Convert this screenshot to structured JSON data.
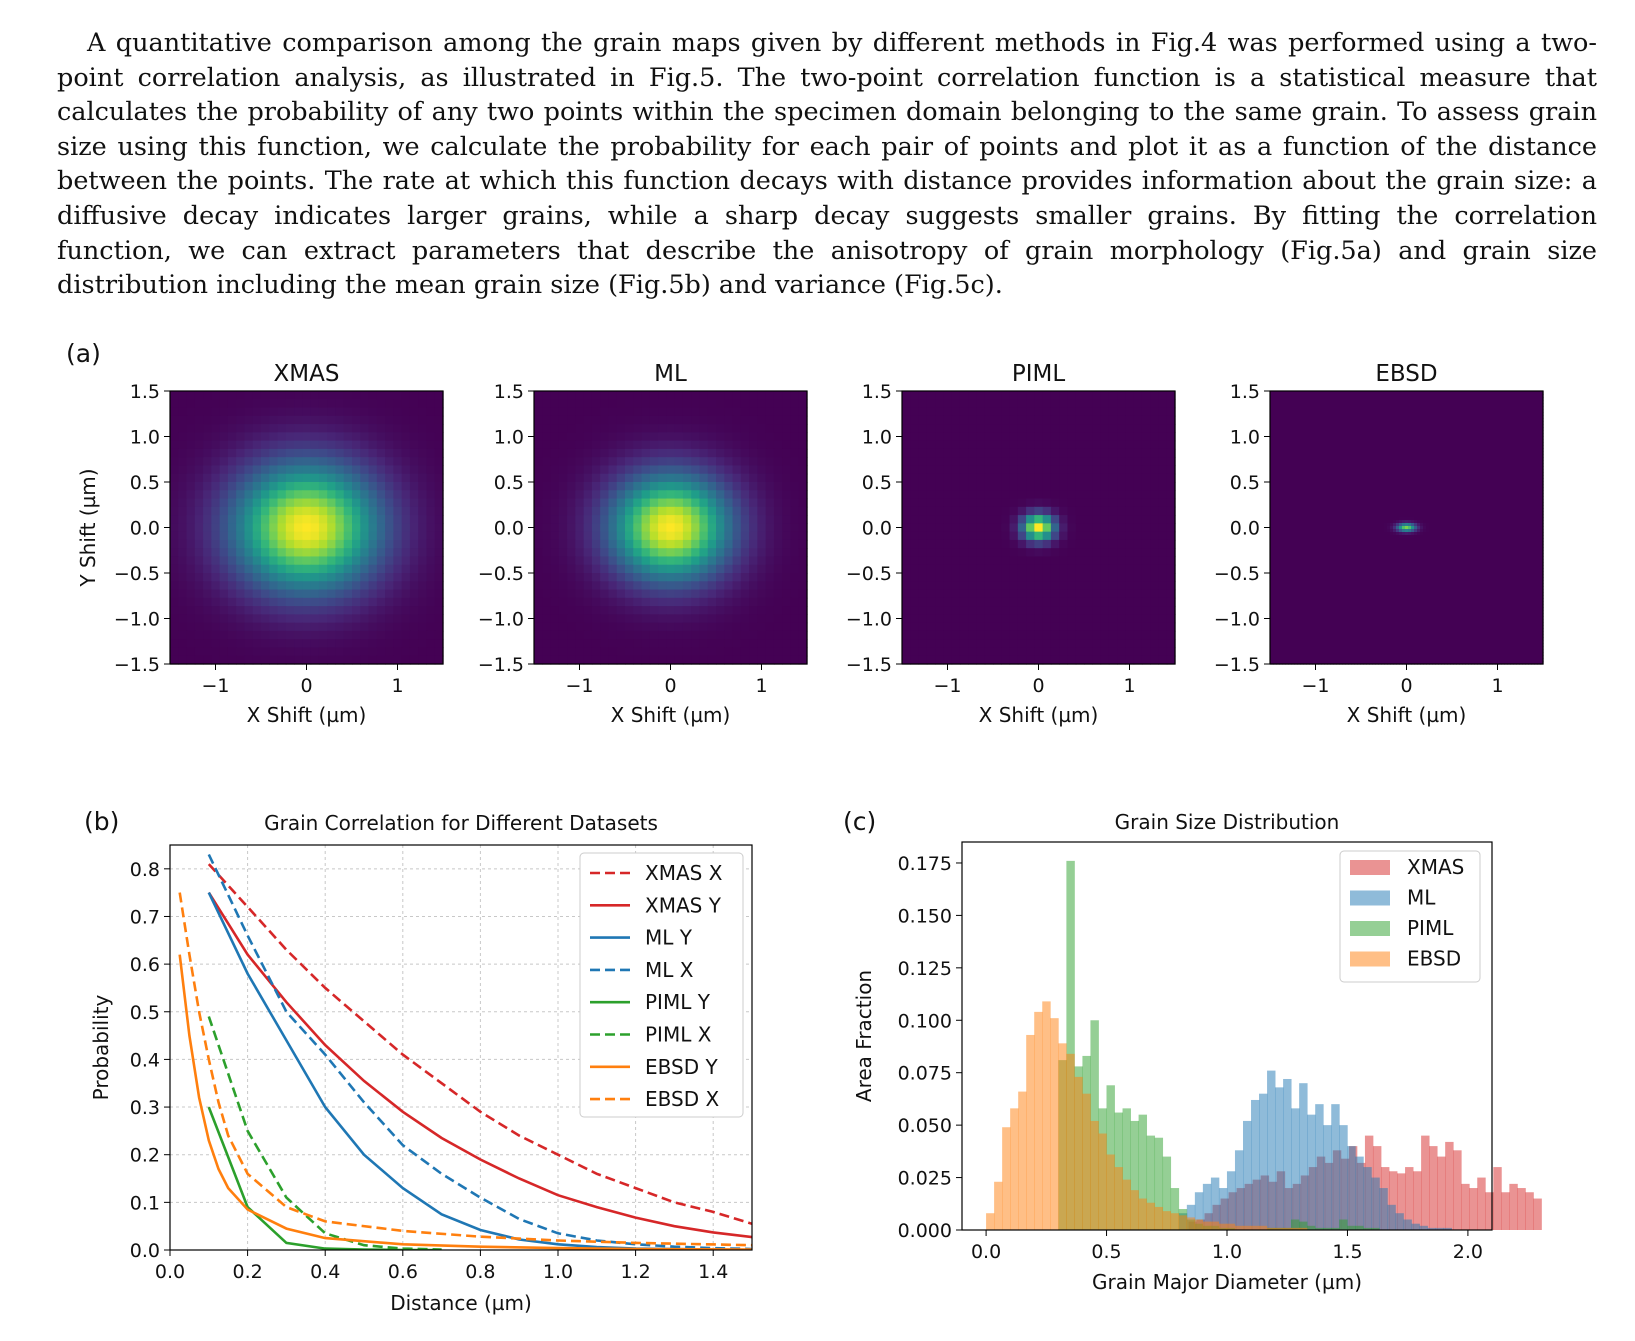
{
  "paragraph": "A quantitative comparison among the grain maps given by different methods in Fig.4 was performed using a two-point correlation analysis, as illustrated in Fig.5. The two-point correlation function is a statistical measure that calculates the probability of any two points within the specimen domain belonging to the same grain. To assess grain size using this function, we calculate the probability for each pair of points and plot it as a function of the distance between the points. The rate at which this function decays with distance provides information about the grain size: a diffusive decay indicates larger grains, while a sharp decay suggests smaller grains. By fitting the correlation function, we can extract parameters that describe the anisotropy of grain morphology (Fig.5a) and grain size distribution including the mean grain size (Fig.5b) and variance (Fig.5c).",
  "chart_data": [
    {
      "type": "heatmap",
      "panel_label": "(a)",
      "colormap": "viridis",
      "xlabel": "X Shift (µm)",
      "ylabel": "Y Shift (µm)",
      "xlim": [
        -1.5,
        1.5
      ],
      "ylim": [
        -1.5,
        1.5
      ],
      "xticks": [
        -1,
        0,
        1
      ],
      "yticks": [
        1.5,
        1.0,
        0.5,
        0.0,
        -0.5,
        -1.0,
        -1.5
      ],
      "xtick_labels": [
        "−1",
        "0",
        "1"
      ],
      "ytick_labels": [
        "1.5",
        "1.0",
        "0.5",
        "0.0",
        "−0.5",
        "−1.0",
        "−1.5"
      ],
      "panels": [
        {
          "title": "XMAS",
          "sigma_x": 0.55,
          "sigma_y": 0.48,
          "peak": 1.0
        },
        {
          "title": "ML",
          "sigma_x": 0.45,
          "sigma_y": 0.4,
          "peak": 1.0
        },
        {
          "title": "PIML",
          "sigma_x": 0.12,
          "sigma_y": 0.1,
          "peak": 1.0
        },
        {
          "title": "EBSD",
          "sigma_x": 0.07,
          "sigma_y": 0.03,
          "peak": 0.8
        }
      ]
    },
    {
      "type": "line",
      "panel_label": "(b)",
      "title": "Grain Correlation for Different Datasets",
      "xlabel": "Distance (µm)",
      "ylabel": "Probability",
      "xlim": [
        0.0,
        1.5
      ],
      "ylim": [
        0.0,
        0.85
      ],
      "xticks": [
        0.0,
        0.2,
        0.4,
        0.6,
        0.8,
        1.0,
        1.2,
        1.4
      ],
      "xtick_labels": [
        "0.0",
        "0.2",
        "0.4",
        "0.6",
        "0.8",
        "1.0",
        "1.2",
        "1.4"
      ],
      "yticks": [
        0.0,
        0.1,
        0.2,
        0.3,
        0.4,
        0.5,
        0.6,
        0.7,
        0.8
      ],
      "ytick_labels": [
        "0.0",
        "0.1",
        "0.2",
        "0.3",
        "0.4",
        "0.5",
        "0.6",
        "0.7",
        "0.8"
      ],
      "grid": true,
      "legend": "top-right",
      "series": [
        {
          "name": "XMAS X",
          "color": "#d62728",
          "style": "dashed",
          "x": [
            0.1,
            0.2,
            0.3,
            0.4,
            0.5,
            0.6,
            0.7,
            0.8,
            0.9,
            1.0,
            1.1,
            1.2,
            1.3,
            1.4,
            1.5
          ],
          "y": [
            0.81,
            0.72,
            0.63,
            0.55,
            0.48,
            0.41,
            0.35,
            0.29,
            0.24,
            0.2,
            0.16,
            0.13,
            0.1,
            0.08,
            0.055
          ]
        },
        {
          "name": "XMAS Y",
          "color": "#d62728",
          "style": "solid",
          "x": [
            0.1,
            0.2,
            0.3,
            0.4,
            0.5,
            0.6,
            0.7,
            0.8,
            0.9,
            1.0,
            1.1,
            1.2,
            1.3,
            1.4,
            1.5
          ],
          "y": [
            0.75,
            0.62,
            0.52,
            0.43,
            0.355,
            0.29,
            0.235,
            0.19,
            0.15,
            0.115,
            0.09,
            0.068,
            0.05,
            0.037,
            0.027
          ]
        },
        {
          "name": "ML Y",
          "color": "#1f77b4",
          "style": "solid",
          "x": [
            0.1,
            0.2,
            0.3,
            0.4,
            0.5,
            0.6,
            0.7,
            0.8,
            0.9,
            1.0,
            1.1,
            1.2,
            1.3,
            1.4,
            1.5
          ],
          "y": [
            0.75,
            0.58,
            0.44,
            0.3,
            0.2,
            0.13,
            0.075,
            0.042,
            0.022,
            0.012,
            0.006,
            0.003,
            0.002,
            0.001,
            0.0
          ]
        },
        {
          "name": "ML X",
          "color": "#1f77b4",
          "style": "dashed",
          "x": [
            0.1,
            0.2,
            0.3,
            0.4,
            0.5,
            0.6,
            0.7,
            0.8,
            0.9,
            1.0,
            1.1,
            1.2,
            1.3,
            1.4,
            1.5
          ],
          "y": [
            0.83,
            0.66,
            0.5,
            0.41,
            0.31,
            0.22,
            0.16,
            0.11,
            0.065,
            0.035,
            0.02,
            0.012,
            0.007,
            0.004,
            0.002
          ]
        },
        {
          "name": "PIML Y",
          "color": "#2ca02c",
          "style": "solid",
          "x": [
            0.1,
            0.2,
            0.3,
            0.4,
            0.5,
            0.6,
            0.7
          ],
          "y": [
            0.3,
            0.09,
            0.015,
            0.003,
            0.001,
            0.0,
            0.0
          ]
        },
        {
          "name": "PIML X",
          "color": "#2ca02c",
          "style": "dashed",
          "x": [
            0.1,
            0.2,
            0.3,
            0.4,
            0.5,
            0.6,
            0.7
          ],
          "y": [
            0.49,
            0.25,
            0.11,
            0.035,
            0.01,
            0.003,
            0.001
          ]
        },
        {
          "name": "EBSD Y",
          "color": "#ff7f0e",
          "style": "solid",
          "x": [
            0.025,
            0.05,
            0.075,
            0.1,
            0.125,
            0.15,
            0.2,
            0.3,
            0.4,
            0.6,
            0.8,
            1.0,
            1.2,
            1.5
          ],
          "y": [
            0.62,
            0.45,
            0.32,
            0.23,
            0.17,
            0.13,
            0.085,
            0.045,
            0.025,
            0.012,
            0.007,
            0.004,
            0.002,
            0.001
          ]
        },
        {
          "name": "EBSD X",
          "color": "#ff7f0e",
          "style": "dashed",
          "x": [
            0.025,
            0.05,
            0.075,
            0.1,
            0.125,
            0.15,
            0.2,
            0.3,
            0.4,
            0.6,
            0.8,
            1.0,
            1.2,
            1.5
          ],
          "y": [
            0.75,
            0.62,
            0.5,
            0.4,
            0.31,
            0.24,
            0.16,
            0.09,
            0.06,
            0.04,
            0.028,
            0.02,
            0.015,
            0.01
          ]
        }
      ]
    },
    {
      "type": "histogram",
      "panel_label": "(c)",
      "title": "Grain Size Distribution",
      "xlabel": "Grain Major Diameter (µm)",
      "ylabel": "Area Fraction",
      "xlim": [
        -0.1,
        2.1
      ],
      "ylim": [
        0.0,
        0.185
      ],
      "xticks": [
        0.0,
        0.5,
        1.0,
        1.5,
        2.0
      ],
      "xtick_labels": [
        "0.0",
        "0.5",
        "1.0",
        "1.5",
        "2.0"
      ],
      "yticks": [
        0.0,
        0.025,
        0.05,
        0.075,
        0.1,
        0.125,
        0.15,
        0.175
      ],
      "ytick_labels": [
        "0.000",
        "0.025",
        "0.050",
        "0.075",
        "0.100",
        "0.125",
        "0.150",
        "0.175"
      ],
      "legend": "top-right",
      "alpha": 0.5,
      "series": [
        {
          "name": "XMAS",
          "color": "#d62728",
          "bin_start": 0.84,
          "bin_width": 0.0333,
          "values": [
            0.004,
            0.005,
            0.008,
            0.012,
            0.015,
            0.018,
            0.02,
            0.022,
            0.024,
            0.026,
            0.023,
            0.028,
            0.02,
            0.022,
            0.026,
            0.03,
            0.035,
            0.032,
            0.038,
            0.034,
            0.04,
            0.032,
            0.045,
            0.04,
            0.03,
            0.028,
            0.027,
            0.03,
            0.028,
            0.045,
            0.04,
            0.035,
            0.042,
            0.038,
            0.022,
            0.02,
            0.025,
            0.018,
            0.03,
            0.018,
            0.022,
            0.02,
            0.018,
            0.015
          ]
        },
        {
          "name": "ML",
          "color": "#1f77b4",
          "bin_start": 0.8,
          "bin_width": 0.0333,
          "values": [
            0.008,
            0.012,
            0.018,
            0.022,
            0.025,
            0.02,
            0.028,
            0.038,
            0.052,
            0.062,
            0.065,
            0.076,
            0.068,
            0.072,
            0.058,
            0.07,
            0.055,
            0.06,
            0.05,
            0.06,
            0.05,
            0.04,
            0.035,
            0.03,
            0.025,
            0.02,
            0.012,
            0.008,
            0.005,
            0.003,
            0.002,
            0.001,
            0.001,
            0.001,
            0.0,
            0.0,
            0.0,
            0.0,
            0.0,
            0.0
          ]
        },
        {
          "name": "PIML",
          "color": "#2ca02c",
          "bin_start": 0.3,
          "bin_width": 0.0333,
          "values": [
            0.081,
            0.176,
            0.078,
            0.083,
            0.1,
            0.058,
            0.069,
            0.056,
            0.058,
            0.052,
            0.055,
            0.045,
            0.044,
            0.035,
            0.02,
            0.01,
            0.005,
            0.003,
            0.002,
            0.002,
            0.001,
            0.001,
            0.0,
            0.0,
            0.0,
            0.0,
            0.001,
            0.001,
            0.001,
            0.005,
            0.004,
            0.002,
            0.001,
            0.001,
            0.001,
            0.005,
            0.002,
            0.002,
            0.001,
            0.001
          ]
        },
        {
          "name": "EBSD",
          "color": "#ff7f0e",
          "bin_start": 0.0,
          "bin_width": 0.0333,
          "values": [
            0.008,
            0.023,
            0.049,
            0.058,
            0.066,
            0.093,
            0.104,
            0.109,
            0.101,
            0.089,
            0.084,
            0.073,
            0.065,
            0.052,
            0.046,
            0.036,
            0.03,
            0.024,
            0.019,
            0.015,
            0.013,
            0.011,
            0.009,
            0.008,
            0.007,
            0.006,
            0.005,
            0.004,
            0.004,
            0.003,
            0.003,
            0.002,
            0.002,
            0.002,
            0.002,
            0.001,
            0.001,
            0.001,
            0.001,
            0.001
          ]
        }
      ]
    }
  ]
}
